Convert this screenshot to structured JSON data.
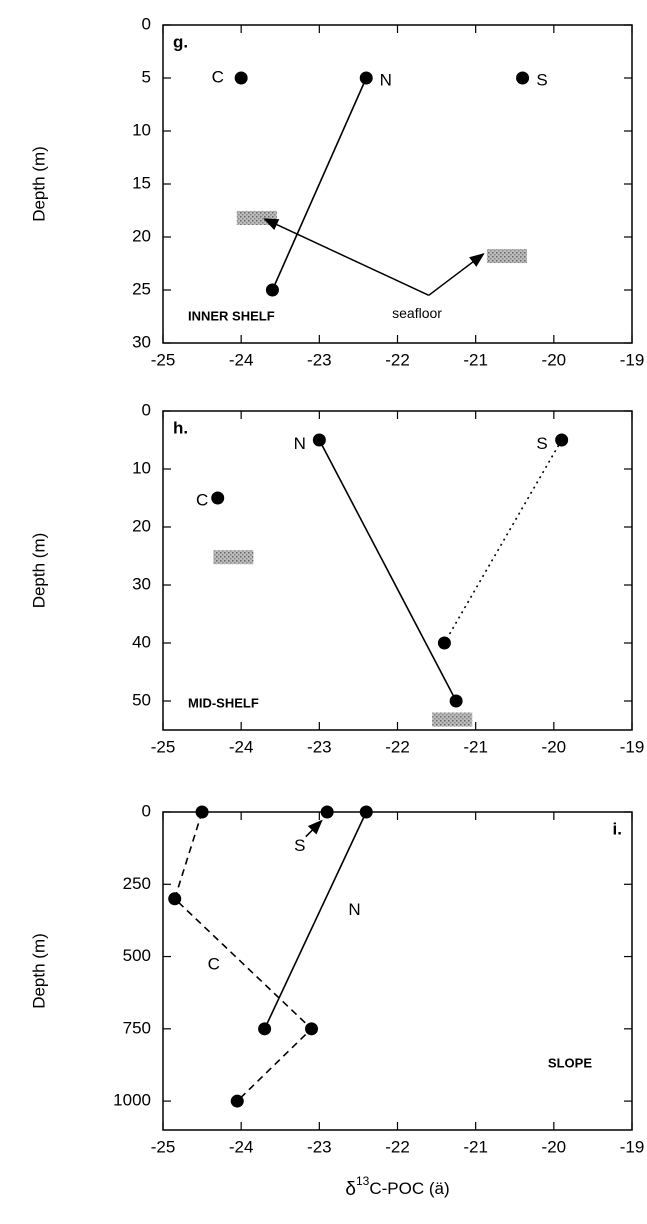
{
  "chart_data": [
    {
      "type": "scatter",
      "panel_label": "g.",
      "panel_label_corner": "upper left",
      "region": "INNER SHELF",
      "region_corner": "lower left",
      "y_label": "Depth (m)",
      "xlim": [
        -25,
        -19
      ],
      "xticks": [
        -25,
        -24,
        -23,
        -22,
        -21,
        -20,
        -19
      ],
      "ylim": [
        0,
        30
      ],
      "yticks": [
        0,
        5,
        10,
        15,
        20,
        25,
        30
      ],
      "y_inverted": true,
      "series": [
        {
          "name": "C",
          "x": [
            -24.0
          ],
          "values": [
            5
          ],
          "line": "none",
          "name_at": [
            -24.3,
            5
          ]
        },
        {
          "name": "N",
          "x": [
            -22.4,
            -23.6
          ],
          "values": [
            5,
            25
          ],
          "line": "solid",
          "name_at": [
            -22.15,
            5.3
          ]
        },
        {
          "name": "S",
          "x": [
            -20.4
          ],
          "values": [
            5
          ],
          "line": "none",
          "name_at": [
            -20.15,
            5.3
          ]
        }
      ],
      "seafloor_patches": [
        {
          "x": -23.8,
          "y": 18.2
        },
        {
          "x": -20.6,
          "y": 21.8
        }
      ],
      "annotations": [
        {
          "text": "seafloor",
          "x": -21.75,
          "y": 27.3,
          "arrow_from": [
            -21.6,
            25.5
          ],
          "arrows_to": [
            [
              -23.7,
              18.3
            ],
            [
              -20.9,
              21.6
            ]
          ]
        }
      ]
    },
    {
      "type": "scatter",
      "panel_label": "h.",
      "panel_label_corner": "upper left",
      "region": "MID-SHELF",
      "region_corner": "lower left",
      "y_label": "Depth (m)",
      "xlim": [
        -25,
        -19
      ],
      "xticks": [
        -25,
        -24,
        -23,
        -22,
        -21,
        -20,
        -19
      ],
      "ylim": [
        0,
        55
      ],
      "yticks": [
        0,
        10,
        20,
        30,
        40,
        50
      ],
      "y_inverted": true,
      "series": [
        {
          "name": "N",
          "x": [
            -23.0,
            -21.25
          ],
          "values": [
            5,
            50
          ],
          "line": "solid",
          "name_at": [
            -23.25,
            5.8
          ]
        },
        {
          "name": "S",
          "x": [
            -19.9,
            -21.4
          ],
          "values": [
            5,
            40
          ],
          "line": "dotted",
          "name_at": [
            -20.15,
            5.8
          ]
        },
        {
          "name": "C",
          "x": [
            -24.3
          ],
          "values": [
            15
          ],
          "line": "none",
          "name_at": [
            -24.5,
            15.5
          ]
        }
      ],
      "seafloor_patches": [
        {
          "x": -24.1,
          "y": 25.2
        },
        {
          "x": -21.3,
          "y": 53.2
        }
      ],
      "annotations": []
    },
    {
      "type": "scatter",
      "panel_label": "i.",
      "panel_label_corner": "upper right",
      "region": "SLOPE",
      "region_corner": "lower right",
      "y_label": "Depth (m)",
      "x_label": {
        "symbol": "δ",
        "superscript": "13",
        "rest": "C-POC (ä)"
      },
      "xlim": [
        -25,
        -19
      ],
      "xticks": [
        -25,
        -24,
        -23,
        -22,
        -21,
        -20,
        -19
      ],
      "ylim": [
        0,
        1100
      ],
      "yticks": [
        0,
        250,
        500,
        750,
        1000
      ],
      "y_inverted": true,
      "series": [
        {
          "name": "C",
          "x": [
            -24.5,
            -24.85,
            -23.1,
            -24.05
          ],
          "values": [
            0,
            300,
            750,
            1000
          ],
          "line": "dashed",
          "name_at": [
            -24.35,
            530
          ]
        },
        {
          "name": "N",
          "x": [
            -22.4,
            -23.7
          ],
          "values": [
            0,
            750
          ],
          "line": "solid",
          "name_at": [
            -22.55,
            340
          ]
        },
        {
          "name": "S",
          "x": [
            -22.9
          ],
          "values": [
            0
          ],
          "line": "none",
          "name_at": [
            -23.25,
            120
          ],
          "name_arrow_to": [
            -22.97,
            30
          ]
        }
      ],
      "seafloor_patches": [],
      "annotations": []
    }
  ]
}
